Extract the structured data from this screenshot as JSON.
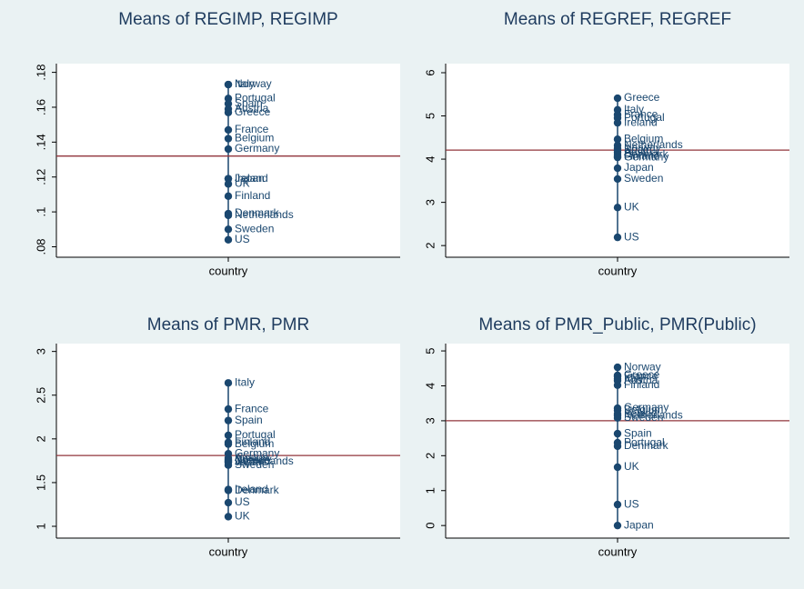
{
  "chart_data": [
    {
      "type": "dot",
      "title": "Means of REGIMP, REGIMP",
      "xlabel": "country",
      "categories": [
        "Italy",
        "Norway",
        "Portugal",
        "Spain",
        "Austria",
        "Greece",
        "France",
        "Belgium",
        "Germany",
        "Ireland",
        "Japan",
        "UK",
        "Finland",
        "Denmark",
        "Netherlands",
        "Sweden",
        "US"
      ],
      "values": [
        0.173,
        0.173,
        0.165,
        0.162,
        0.159,
        0.157,
        0.147,
        0.142,
        0.136,
        0.119,
        0.119,
        0.116,
        0.109,
        0.099,
        0.098,
        0.09,
        0.084
      ],
      "hline": 0.132,
      "color": "#1a476f",
      "hline_color": "#90353b",
      "ylim": [
        0.074,
        0.185
      ],
      "yticks": [
        {
          "value": 0.08,
          "label": ".08"
        },
        {
          "value": 0.1,
          "label": ".1"
        },
        {
          "value": 0.12,
          "label": ".12"
        },
        {
          "value": 0.14,
          "label": ".14"
        },
        {
          "value": 0.16,
          "label": ".16"
        },
        {
          "value": 0.18,
          "label": ".18"
        }
      ]
    },
    {
      "type": "dot",
      "title": "Means of REGREF, REGREF",
      "xlabel": "country",
      "categories": [
        "Greece",
        "Italy",
        "France",
        "Portugal",
        "Ireland",
        "Belgium",
        "Netherlands",
        "Norway",
        "Spain",
        "Austria",
        "Denmark",
        "Finland",
        "Germany",
        "Japan",
        "Sweden",
        "UK",
        "US"
      ],
      "values": [
        5.41,
        5.14,
        5.03,
        4.95,
        4.84,
        4.46,
        4.32,
        4.25,
        4.2,
        4.15,
        4.1,
        4.06,
        4.04,
        3.79,
        3.54,
        2.88,
        2.19
      ],
      "hline": 4.21,
      "color": "#1a476f",
      "hline_color": "#90353b",
      "ylim": [
        1.73,
        6.21
      ],
      "yticks": [
        2,
        3,
        4,
        5,
        6
      ]
    },
    {
      "type": "dot",
      "title": "Means of PMR, PMR",
      "xlabel": "country",
      "categories": [
        "Italy",
        "France",
        "Spain",
        "Portugal",
        "Finland",
        "Belgium",
        "Germany",
        "Austria",
        "Norway",
        "Greece",
        "Netherlands",
        "Japan",
        "Sweden",
        "Ireland",
        "Denmark",
        "US",
        "UK"
      ],
      "values": [
        2.64,
        2.34,
        2.21,
        2.04,
        1.96,
        1.94,
        1.83,
        1.78,
        1.76,
        1.75,
        1.74,
        1.73,
        1.7,
        1.42,
        1.41,
        1.27,
        1.11
      ],
      "hline": 1.81,
      "color": "#1a476f",
      "hline_color": "#90353b",
      "ylim": [
        0.865,
        3.09
      ],
      "yticks": [
        1,
        1.5,
        2,
        2.5,
        3
      ]
    },
    {
      "type": "dot",
      "title": "Means of PMR_Public, PMR(Public)",
      "xlabel": "country",
      "categories": [
        "Norway",
        "Greece",
        "France",
        "Italy",
        "Austria",
        "Finland",
        "Germany",
        "Belgium",
        "Ireland",
        "Netherlands",
        "Sweden",
        "Spain",
        "Portugal",
        "Denmark",
        "UK",
        "US",
        "Japan"
      ],
      "values": [
        4.53,
        4.3,
        4.27,
        4.2,
        4.15,
        4.02,
        3.36,
        3.3,
        3.2,
        3.15,
        3.08,
        2.63,
        2.37,
        2.27,
        1.67,
        0.6,
        0
      ],
      "hline": 3.0,
      "color": "#1a476f",
      "hline_color": "#90353b",
      "ylim": [
        -0.36,
        5.21
      ],
      "yticks": [
        0,
        1,
        2,
        3,
        4,
        5
      ]
    }
  ]
}
